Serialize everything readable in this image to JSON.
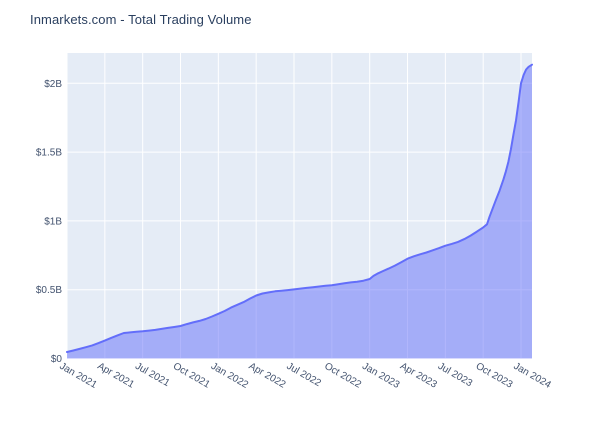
{
  "chart_data": {
    "type": "area",
    "title": "Inmarkets.com - Total Trading Volume",
    "xlabel": "",
    "ylabel": "",
    "x_unit": "months since Jan 2021",
    "y_unit": "USD (billions)",
    "x_range": [
      0,
      36.87
    ],
    "y_range": [
      0,
      2.22
    ],
    "grid": true,
    "legend": false,
    "x_ticks": [
      {
        "m": 0,
        "label": "Jan 2021"
      },
      {
        "m": 3,
        "label": "Apr 2021"
      },
      {
        "m": 6,
        "label": "Jul 2021"
      },
      {
        "m": 9,
        "label": "Oct 2021"
      },
      {
        "m": 12,
        "label": "Jan 2022"
      },
      {
        "m": 15,
        "label": "Apr 2022"
      },
      {
        "m": 18,
        "label": "Jul 2022"
      },
      {
        "m": 21,
        "label": "Oct 2022"
      },
      {
        "m": 24,
        "label": "Jan 2023"
      },
      {
        "m": 27,
        "label": "Apr 2023"
      },
      {
        "m": 30,
        "label": "Jul 2023"
      },
      {
        "m": 33,
        "label": "Oct 2023"
      },
      {
        "m": 36,
        "label": "Jan 2024"
      }
    ],
    "y_ticks": [
      {
        "v": 0,
        "label": "$0"
      },
      {
        "v": 0.5,
        "label": "$0.5B"
      },
      {
        "v": 1,
        "label": "$1B"
      },
      {
        "v": 1.5,
        "label": "$1.5B"
      },
      {
        "v": 2,
        "label": "$2B"
      }
    ],
    "series": [
      {
        "name": "Total Trading Volume",
        "points": [
          [
            0,
            0.047
          ],
          [
            0.5,
            0.058
          ],
          [
            1,
            0.07
          ],
          [
            1.5,
            0.082
          ],
          [
            2,
            0.095
          ],
          [
            2.5,
            0.112
          ],
          [
            3,
            0.13
          ],
          [
            3.5,
            0.15
          ],
          [
            4,
            0.168
          ],
          [
            4.5,
            0.185
          ],
          [
            5,
            0.19
          ],
          [
            5.5,
            0.194
          ],
          [
            6,
            0.198
          ],
          [
            6.5,
            0.203
          ],
          [
            7,
            0.208
          ],
          [
            7.5,
            0.215
          ],
          [
            8,
            0.222
          ],
          [
            8.5,
            0.229
          ],
          [
            9,
            0.236
          ],
          [
            9.5,
            0.25
          ],
          [
            10,
            0.262
          ],
          [
            10.5,
            0.273
          ],
          [
            11,
            0.287
          ],
          [
            11.5,
            0.305
          ],
          [
            12,
            0.325
          ],
          [
            12.5,
            0.345
          ],
          [
            13,
            0.37
          ],
          [
            13.5,
            0.39
          ],
          [
            14,
            0.41
          ],
          [
            14.5,
            0.435
          ],
          [
            15,
            0.458
          ],
          [
            15.5,
            0.472
          ],
          [
            16,
            0.48
          ],
          [
            16.5,
            0.488
          ],
          [
            17,
            0.493
          ],
          [
            17.5,
            0.497
          ],
          [
            18,
            0.502
          ],
          [
            18.5,
            0.508
          ],
          [
            19,
            0.513
          ],
          [
            19.5,
            0.518
          ],
          [
            20,
            0.523
          ],
          [
            20.5,
            0.528
          ],
          [
            21,
            0.533
          ],
          [
            21.5,
            0.54
          ],
          [
            22,
            0.547
          ],
          [
            22.5,
            0.553
          ],
          [
            23,
            0.558
          ],
          [
            23.5,
            0.565
          ],
          [
            24,
            0.578
          ],
          [
            24.3,
            0.6
          ],
          [
            24.6,
            0.616
          ],
          [
            25,
            0.633
          ],
          [
            25.5,
            0.653
          ],
          [
            26,
            0.675
          ],
          [
            26.5,
            0.7
          ],
          [
            27,
            0.725
          ],
          [
            27.5,
            0.743
          ],
          [
            28,
            0.757
          ],
          [
            28.5,
            0.77
          ],
          [
            29,
            0.786
          ],
          [
            29.5,
            0.802
          ],
          [
            30,
            0.82
          ],
          [
            30.5,
            0.833
          ],
          [
            31,
            0.847
          ],
          [
            31.5,
            0.868
          ],
          [
            32,
            0.893
          ],
          [
            32.5,
            0.922
          ],
          [
            33,
            0.953
          ],
          [
            33.3,
            0.975
          ],
          [
            33.5,
            1.03
          ],
          [
            34,
            1.15
          ],
          [
            34.3,
            1.22
          ],
          [
            34.6,
            1.3
          ],
          [
            34.8,
            1.36
          ],
          [
            35,
            1.43
          ],
          [
            35.2,
            1.52
          ],
          [
            35.4,
            1.63
          ],
          [
            35.6,
            1.73
          ],
          [
            35.8,
            1.86
          ],
          [
            36,
            2.0
          ],
          [
            36.2,
            2.06
          ],
          [
            36.4,
            2.1
          ],
          [
            36.6,
            2.12
          ],
          [
            36.87,
            2.135
          ]
        ]
      }
    ],
    "colors": {
      "paper_bg": "#ffffff",
      "plot_bg": "#e5ecf6",
      "grid": "#ffffff",
      "line": "#636efa",
      "fill": "rgba(99,110,250,0.5)",
      "title_text": "#2a3f5f",
      "tick_text": "#42526e"
    }
  }
}
